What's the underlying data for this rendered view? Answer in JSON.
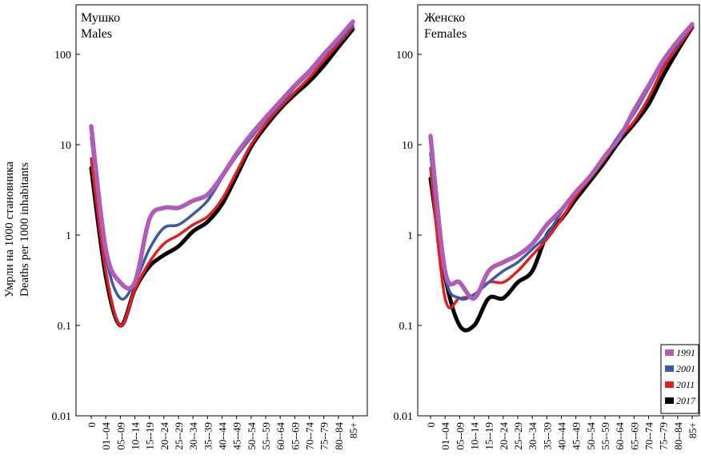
{
  "ylabel_bg": "Умрли на 1000 становника",
  "ylabel_en": "Deaths per 1000 inhabitants",
  "yscale": "log",
  "ylim": [
    0.01,
    300
  ],
  "yticks": [
    "0.01",
    "0.1",
    "1",
    "10",
    "100"
  ],
  "categories": [
    "0",
    "01--04",
    "05--09",
    "10--14",
    "15--19",
    "20--24",
    "25--29",
    "30--34",
    "35--39",
    "40--44",
    "45--49",
    "50--54",
    "55--59",
    "60--64",
    "65--69",
    "70--74",
    "75--79",
    "80--84",
    "85+"
  ],
  "legend": [
    {
      "name": "1991",
      "color": "#b25cb8"
    },
    {
      "name": "2001",
      "color": "#3a5aa8"
    },
    {
      "name": "2011",
      "color": "#e02020"
    },
    {
      "name": "2017",
      "color": "#000000"
    }
  ],
  "chart_data": [
    {
      "type": "line",
      "title": "Мушко",
      "subtitle": "Males",
      "ylabel": "Умрли на 1000 становника / Deaths per 1000 inhabitants",
      "yscale": "log",
      "ylim": [
        0.01,
        300
      ],
      "categories": [
        "0",
        "01--04",
        "05--09",
        "10--14",
        "15--19",
        "20--24",
        "25--29",
        "30--34",
        "35--39",
        "40--44",
        "45--49",
        "50--54",
        "55--59",
        "60--64",
        "65--69",
        "70--74",
        "75--79",
        "80--84",
        "85+"
      ],
      "series": [
        {
          "name": "1991",
          "values": [
            16,
            0.7,
            0.3,
            0.3,
            1.5,
            2.0,
            2.0,
            2.4,
            2.8,
            4.5,
            8,
            13,
            20,
            30,
            45,
            65,
            100,
            150,
            230
          ]
        },
        {
          "name": "2001",
          "values": [
            12,
            0.6,
            0.2,
            0.3,
            0.7,
            1.2,
            1.3,
            1.7,
            2.4,
            4.3,
            7.5,
            12,
            19,
            28,
            43,
            62,
            95,
            140,
            210
          ]
        },
        {
          "name": "2011",
          "values": [
            7,
            0.4,
            0.1,
            0.25,
            0.5,
            0.8,
            1.0,
            1.3,
            1.6,
            2.5,
            5,
            10,
            17,
            26,
            38,
            55,
            85,
            130,
            200
          ]
        },
        {
          "name": "2017",
          "values": [
            5.5,
            0.35,
            0.1,
            0.25,
            0.45,
            0.6,
            0.75,
            1.1,
            1.4,
            2.2,
            4.5,
            9.5,
            16,
            25,
            36,
            50,
            75,
            120,
            190
          ]
        }
      ]
    },
    {
      "type": "line",
      "title": "Женско",
      "subtitle": "Females",
      "yscale": "log",
      "ylim": [
        0.01,
        300
      ],
      "categories": [
        "0",
        "01--04",
        "05--09",
        "10--14",
        "15--19",
        "20--24",
        "25--29",
        "30--34",
        "35--39",
        "40--44",
        "45--49",
        "50--54",
        "55--59",
        "60--64",
        "65--69",
        "70--74",
        "75--79",
        "80--84",
        "85+"
      ],
      "series": [
        {
          "name": "1991",
          "values": [
            12.5,
            0.4,
            0.3,
            0.2,
            0.4,
            0.5,
            0.6,
            0.8,
            1.3,
            1.9,
            3.0,
            4.5,
            7.5,
            12,
            24,
            45,
            85,
            140,
            215
          ]
        },
        {
          "name": "2001",
          "values": [
            8,
            0.35,
            0.2,
            0.22,
            0.3,
            0.4,
            0.5,
            0.7,
            1.0,
            1.8,
            3.0,
            4.5,
            7.5,
            13,
            22,
            42,
            80,
            130,
            210
          ]
        },
        {
          "name": "2011",
          "values": [
            5.5,
            0.2,
            0.2,
            0.22,
            0.3,
            0.3,
            0.4,
            0.6,
            0.9,
            1.5,
            2.7,
            4.3,
            7,
            12,
            18,
            33,
            70,
            120,
            200
          ]
        },
        {
          "name": "2017",
          "values": [
            4.2,
            0.35,
            0.1,
            0.1,
            0.2,
            0.2,
            0.3,
            0.4,
            1.0,
            1.5,
            2.5,
            4.0,
            6.5,
            11,
            17,
            28,
            58,
            110,
            200
          ]
        }
      ]
    }
  ]
}
